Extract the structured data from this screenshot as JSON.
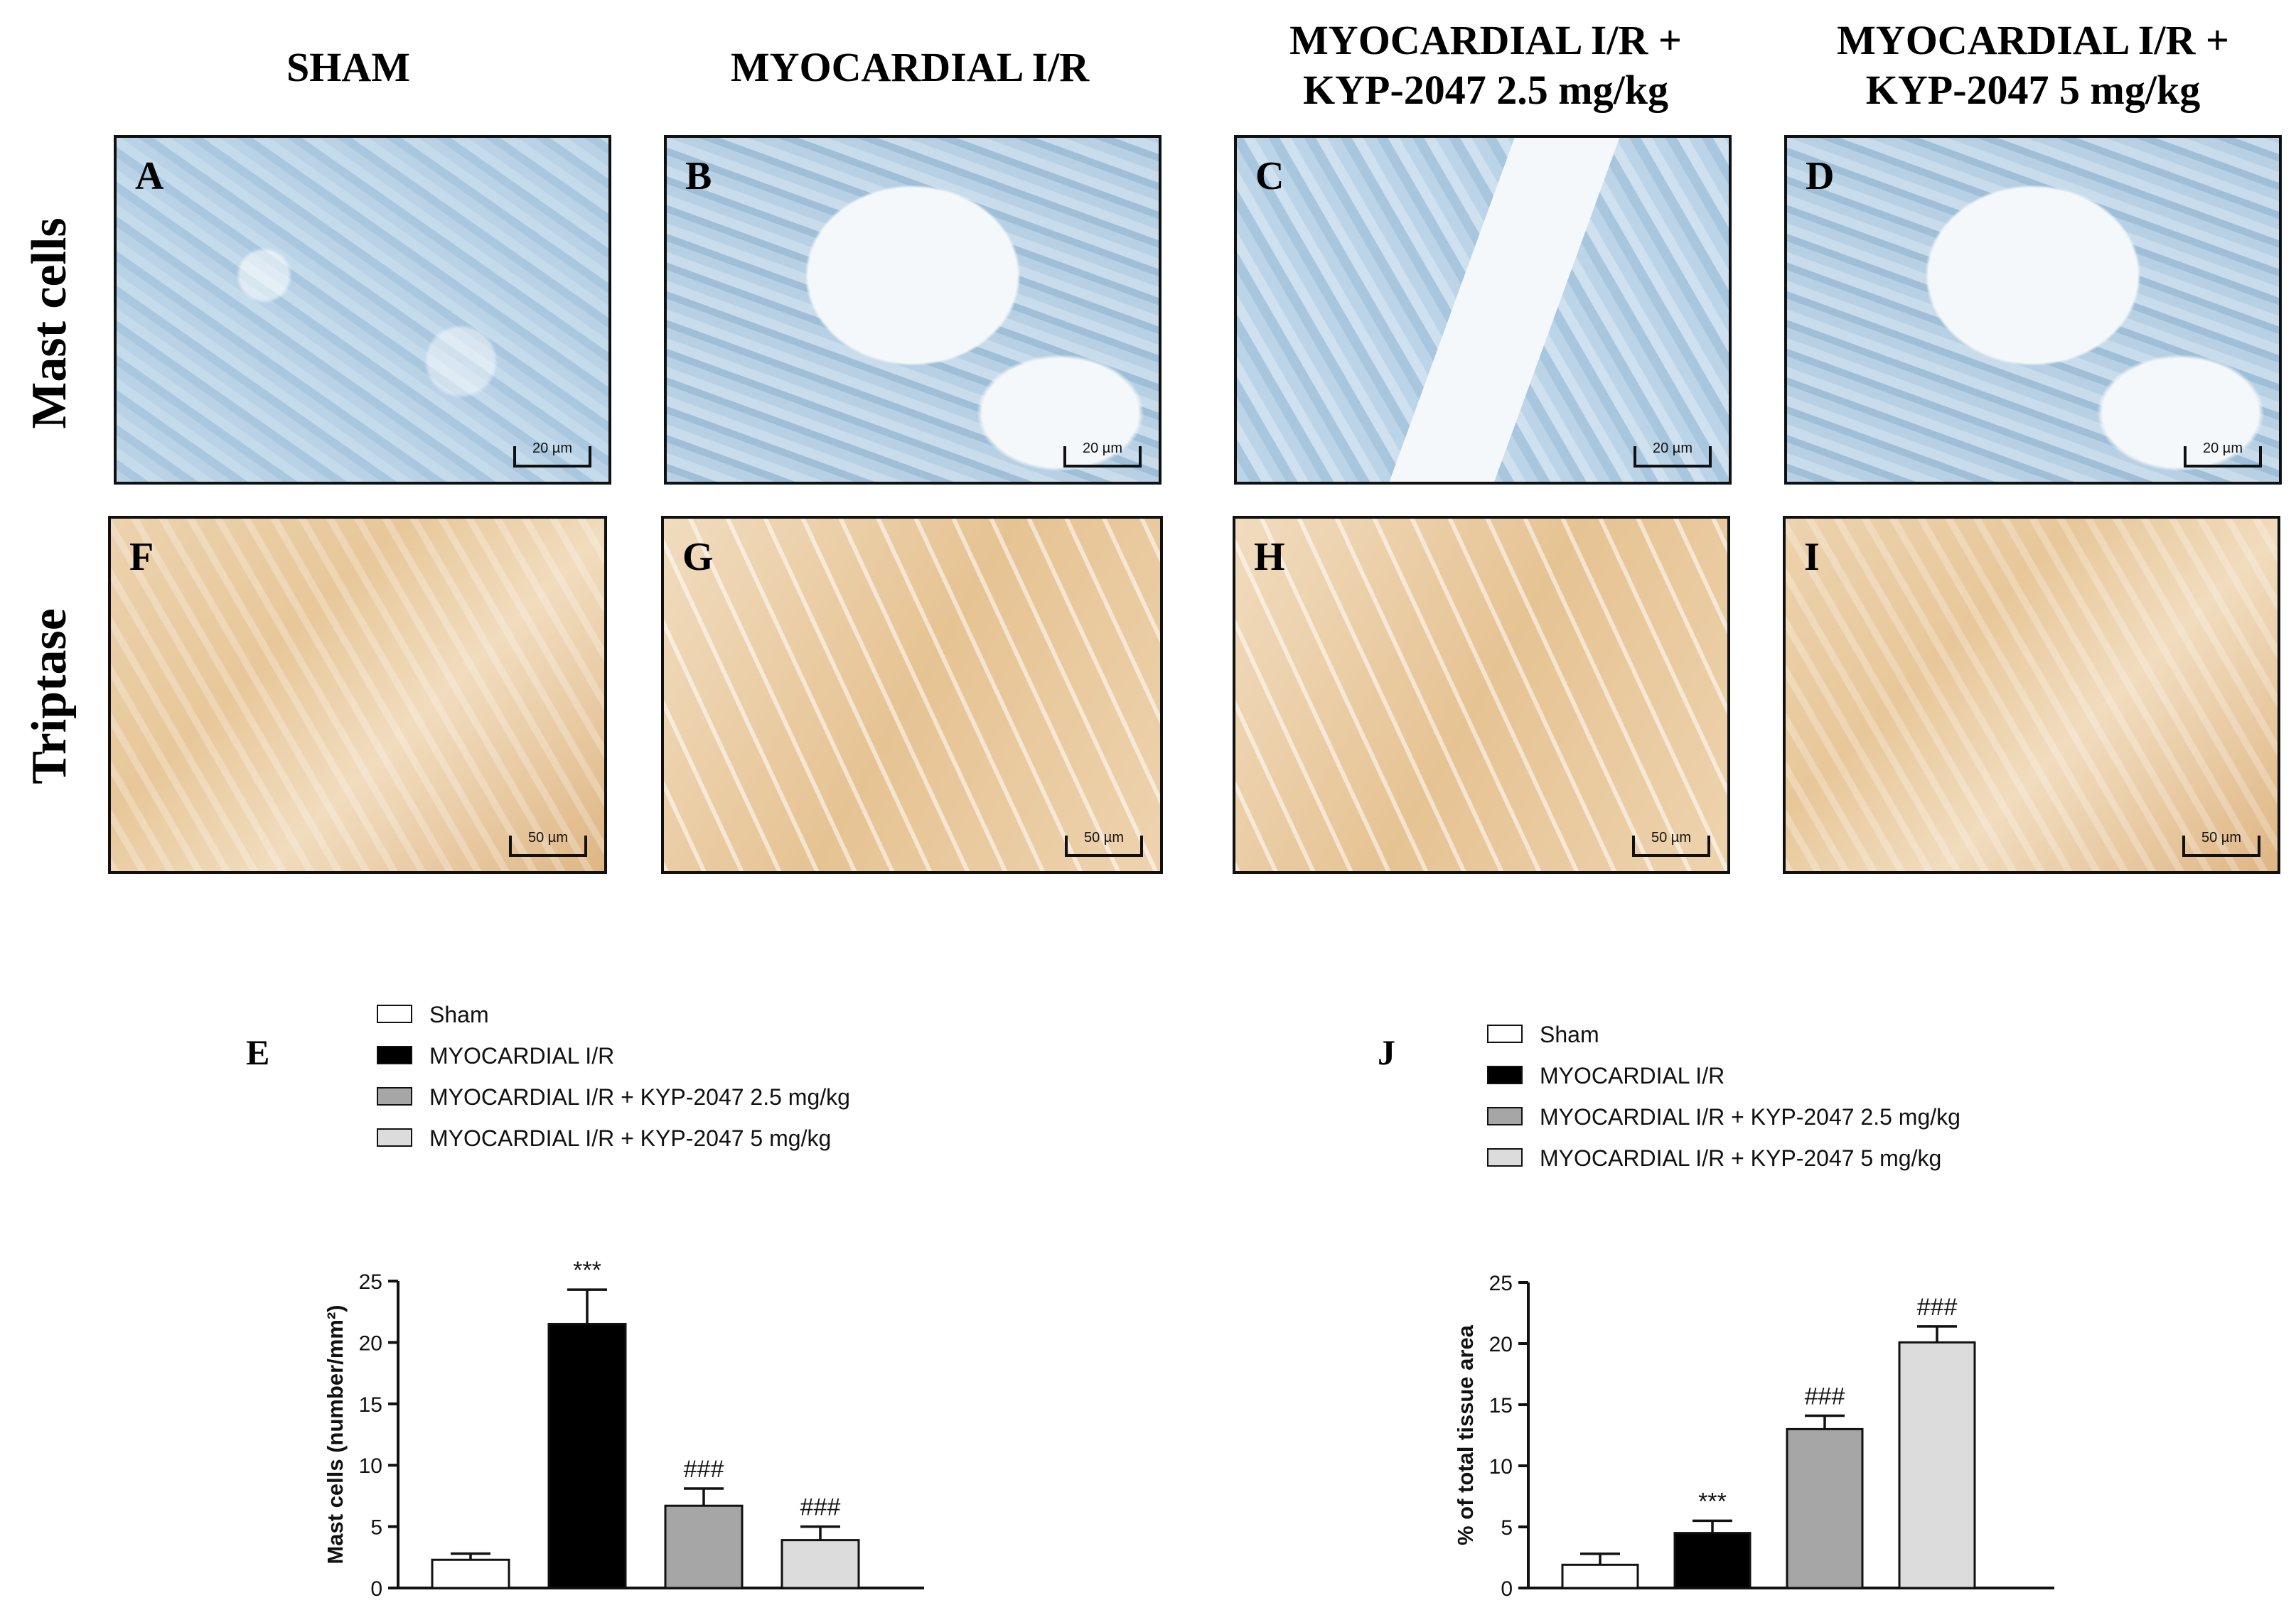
{
  "columns": {
    "sham": {
      "title_line1": "SHAM",
      "title_line2": ""
    },
    "ir": {
      "title_line1": "MYOCARDIAL I/R",
      "title_line2": ""
    },
    "kyp25": {
      "title_line1": "MYOCARDIAL I/R +",
      "title_line2": "KYP-2047 2.5 mg/kg"
    },
    "kyp5": {
      "title_line1": "MYOCARDIAL I/R +",
      "title_line2": "KYP-2047 5 mg/kg"
    }
  },
  "rows": {
    "mast": "Mast cells",
    "triptase": "Triptase"
  },
  "panels": {
    "A": {
      "letter": "A",
      "scale": "20 µm"
    },
    "B": {
      "letter": "B",
      "scale": "20 µm"
    },
    "C": {
      "letter": "C",
      "scale": "20 µm"
    },
    "D": {
      "letter": "D",
      "scale": "20 µm"
    },
    "F": {
      "letter": "F",
      "scale": "50 µm"
    },
    "G": {
      "letter": "G",
      "scale": "50 µm"
    },
    "H": {
      "letter": "H",
      "scale": "50 µm"
    },
    "I": {
      "letter": "I",
      "scale": "50 µm"
    }
  },
  "sections": {
    "E": "E",
    "J": "J"
  },
  "legend": {
    "items": [
      {
        "label": "Sham",
        "color": "#ffffff"
      },
      {
        "label": "MYOCARDIAL I/R",
        "color": "#000000"
      },
      {
        "label": "MYOCARDIAL I/R + KYP-2047 2.5 mg/kg",
        "color": "#a6a6a6"
      },
      {
        "label": "MYOCARDIAL I/R + KYP-2047 5 mg/kg",
        "color": "#dcdcdc"
      }
    ]
  },
  "chart_data": [
    {
      "type": "bar",
      "panel": "E",
      "categories": [
        "Sham",
        "MYOCARDIAL I/R",
        "MYOCARDIAL I/R + KYP-2047 2.5 mg/kg",
        "MYOCARDIAL I/R + KYP-2047 5 mg/kg"
      ],
      "values": [
        2.3,
        21.5,
        6.7,
        3.9
      ],
      "errors": [
        0.5,
        2.8,
        1.4,
        1.1
      ],
      "annotations": [
        "",
        "***",
        "###",
        "###"
      ],
      "colors": [
        "#ffffff",
        "#000000",
        "#a6a6a6",
        "#dcdcdc"
      ],
      "ylabel": "Mast cells (number/mm²)",
      "ylim": [
        0,
        25
      ],
      "yticks": [
        0,
        5,
        10,
        15,
        20,
        25
      ]
    },
    {
      "type": "bar",
      "panel": "J",
      "categories": [
        "Sham",
        "MYOCARDIAL I/R",
        "MYOCARDIAL I/R + KYP-2047 2.5 mg/kg",
        "MYOCARDIAL I/R + KYP-2047 5 mg/kg"
      ],
      "values": [
        1.9,
        4.5,
        13.0,
        20.1
      ],
      "errors": [
        0.9,
        1.0,
        1.1,
        1.3
      ],
      "annotations": [
        "",
        "***",
        "###",
        "###"
      ],
      "colors": [
        "#ffffff",
        "#000000",
        "#a6a6a6",
        "#dcdcdc"
      ],
      "ylabel": "% of total tissue area",
      "ylim": [
        0,
        25
      ],
      "yticks": [
        0,
        5,
        10,
        15,
        20,
        25
      ]
    }
  ]
}
